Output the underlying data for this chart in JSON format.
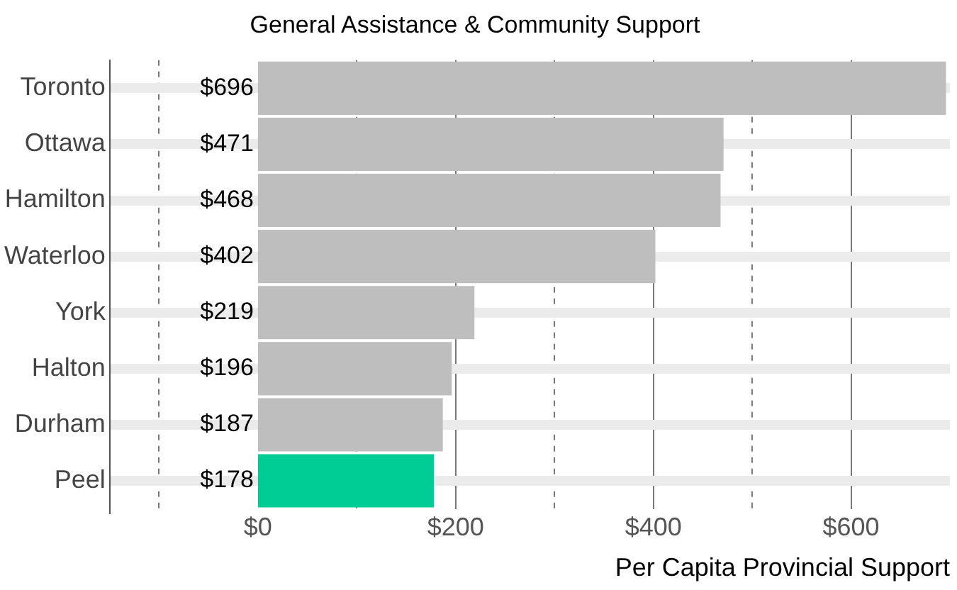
{
  "chart_data": {
    "type": "bar",
    "orientation": "horizontal",
    "title": "General Assistance & Community Support",
    "xlabel": "Per Capita Provincial Support",
    "categories": [
      "Toronto",
      "Ottawa",
      "Hamilton",
      "Waterloo",
      "York",
      "Halton",
      "Durham",
      "Peel"
    ],
    "values": [
      696,
      471,
      468,
      402,
      219,
      196,
      187,
      178
    ],
    "value_labels": [
      "$696",
      "$471",
      "$468",
      "$402",
      "$219",
      "$196",
      "$187",
      "$178"
    ],
    "colors": [
      "#bebebe",
      "#bebebe",
      "#bebebe",
      "#bebebe",
      "#bebebe",
      "#bebebe",
      "#bebebe",
      "#00cc96"
    ],
    "xlim": [
      -150,
      700
    ],
    "xticks": [
      {
        "value": -100,
        "label": null
      },
      {
        "value": 0,
        "label": "$0"
      },
      {
        "value": 100,
        "label": null
      },
      {
        "value": 200,
        "label": "$200"
      },
      {
        "value": 300,
        "label": null
      },
      {
        "value": 400,
        "label": "$400"
      },
      {
        "value": 500,
        "label": null
      },
      {
        "value": 600,
        "label": "$600"
      }
    ],
    "grid": true,
    "legend": false
  }
}
